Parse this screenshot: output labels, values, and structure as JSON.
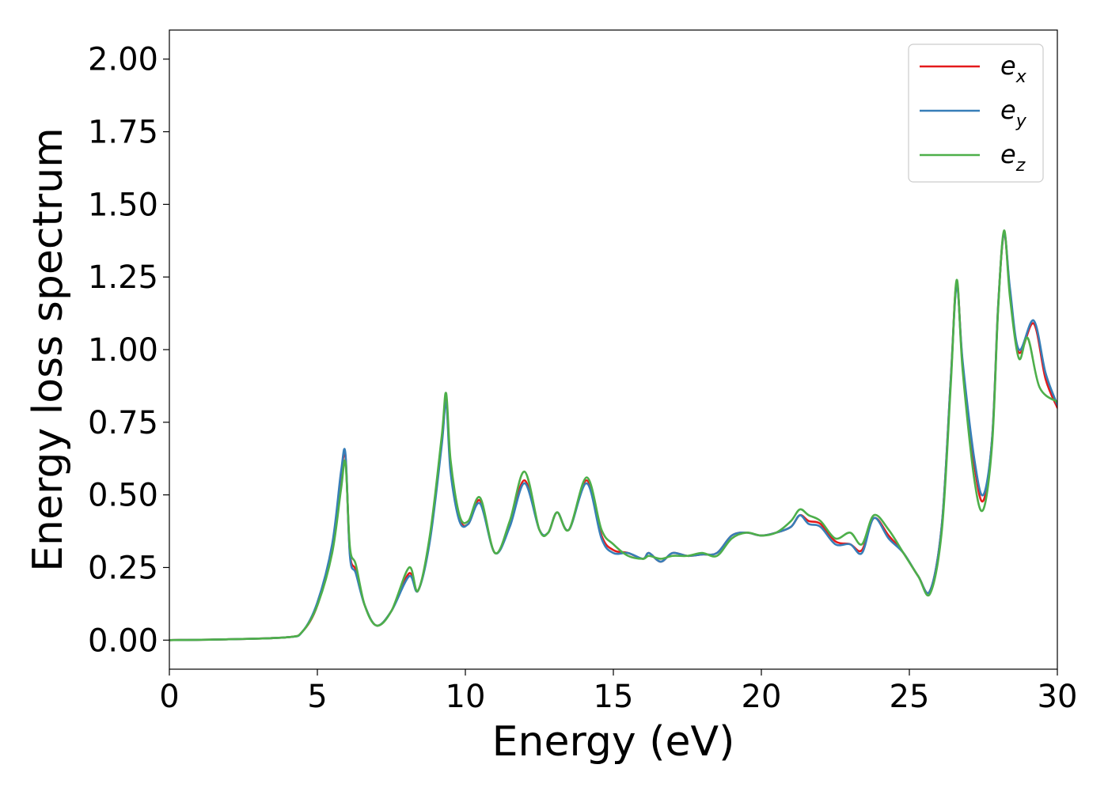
{
  "chart_data": {
    "type": "line",
    "xlabel": "Energy (eV)",
    "ylabel": "Energy loss spectrum",
    "xlim": [
      0,
      30
    ],
    "ylim": [
      -0.1,
      2.1
    ],
    "xticks": [
      0,
      5,
      10,
      15,
      20,
      25,
      30
    ],
    "xtick_labels": [
      "0",
      "5",
      "10",
      "15",
      "20",
      "25",
      "30"
    ],
    "yticks": [
      0,
      0.25,
      0.5,
      0.75,
      1.0,
      1.25,
      1.5,
      1.75,
      2.0
    ],
    "ytick_labels": [
      "0.00",
      "0.25",
      "0.50",
      "0.75",
      "1.00",
      "1.25",
      "1.50",
      "1.75",
      "2.00"
    ],
    "grid": false,
    "legend_position": "top-right",
    "series": [
      {
        "name": "e_x",
        "legend_base": "e",
        "legend_sub": "x",
        "color": "#e41a1c",
        "x": [
          0,
          2,
          4,
          4.5,
          5,
          5.5,
          5.8,
          5.95,
          6.1,
          6.3,
          6.6,
          7.0,
          7.5,
          8.1,
          8.4,
          8.8,
          9.2,
          9.35,
          9.5,
          9.8,
          10.1,
          10.5,
          11.0,
          11.5,
          12.0,
          12.5,
          12.8,
          13.1,
          13.5,
          14.1,
          14.6,
          15.0,
          15.5,
          16.0,
          16.2,
          16.6,
          17.0,
          17.5,
          18.0,
          18.5,
          19.0,
          19.5,
          20.0,
          20.5,
          21.0,
          21.3,
          21.6,
          22.0,
          22.5,
          23.0,
          23.4,
          23.8,
          24.3,
          24.8,
          25.3,
          25.7,
          26.1,
          26.4,
          26.6,
          26.8,
          27.2,
          27.5,
          27.8,
          28.0,
          28.2,
          28.4,
          28.7,
          29.2,
          29.6,
          30.0
        ],
        "y": [
          0.0,
          0.003,
          0.01,
          0.03,
          0.12,
          0.32,
          0.57,
          0.63,
          0.3,
          0.24,
          0.12,
          0.05,
          0.1,
          0.23,
          0.17,
          0.35,
          0.68,
          0.83,
          0.6,
          0.42,
          0.4,
          0.48,
          0.3,
          0.4,
          0.55,
          0.38,
          0.37,
          0.44,
          0.38,
          0.55,
          0.36,
          0.31,
          0.3,
          0.28,
          0.3,
          0.27,
          0.3,
          0.29,
          0.295,
          0.3,
          0.36,
          0.37,
          0.36,
          0.37,
          0.39,
          0.43,
          0.41,
          0.4,
          0.34,
          0.33,
          0.31,
          0.42,
          0.36,
          0.3,
          0.22,
          0.17,
          0.4,
          0.9,
          1.23,
          0.95,
          0.6,
          0.48,
          0.7,
          1.15,
          1.4,
          1.2,
          0.99,
          1.09,
          0.9,
          0.8
        ]
      },
      {
        "name": "e_y",
        "legend_base": "e",
        "legend_sub": "y",
        "color": "#377eb8",
        "x": [
          0,
          2,
          4,
          4.5,
          5,
          5.5,
          5.8,
          5.95,
          6.1,
          6.3,
          6.6,
          7.0,
          7.5,
          8.1,
          8.4,
          8.8,
          9.2,
          9.35,
          9.5,
          9.8,
          10.1,
          10.5,
          11.0,
          11.5,
          12.0,
          12.5,
          12.8,
          13.1,
          13.5,
          14.1,
          14.6,
          15.0,
          15.5,
          16.0,
          16.2,
          16.6,
          17.0,
          17.5,
          18.0,
          18.5,
          19.0,
          19.5,
          20.0,
          20.5,
          21.0,
          21.3,
          21.6,
          22.0,
          22.5,
          23.0,
          23.4,
          23.8,
          24.3,
          24.8,
          25.3,
          25.7,
          26.1,
          26.4,
          26.6,
          26.8,
          27.2,
          27.5,
          27.8,
          28.0,
          28.2,
          28.4,
          28.7,
          29.2,
          29.6,
          30.0
        ],
        "y": [
          0.0,
          0.003,
          0.01,
          0.03,
          0.13,
          0.33,
          0.58,
          0.64,
          0.29,
          0.23,
          0.12,
          0.05,
          0.1,
          0.22,
          0.17,
          0.34,
          0.67,
          0.82,
          0.58,
          0.41,
          0.4,
          0.47,
          0.3,
          0.39,
          0.54,
          0.38,
          0.37,
          0.44,
          0.38,
          0.54,
          0.35,
          0.3,
          0.3,
          0.28,
          0.3,
          0.27,
          0.3,
          0.29,
          0.295,
          0.3,
          0.36,
          0.37,
          0.36,
          0.37,
          0.39,
          0.43,
          0.4,
          0.39,
          0.33,
          0.33,
          0.3,
          0.42,
          0.35,
          0.3,
          0.22,
          0.17,
          0.4,
          0.9,
          1.22,
          0.96,
          0.62,
          0.5,
          0.7,
          1.15,
          1.4,
          1.21,
          1.0,
          1.1,
          0.92,
          0.81
        ]
      },
      {
        "name": "e_z",
        "legend_base": "e",
        "legend_sub": "z",
        "color": "#4daf4a",
        "x": [
          0,
          2,
          4,
          4.5,
          5,
          5.5,
          5.8,
          5.95,
          6.1,
          6.3,
          6.6,
          7.0,
          7.5,
          8.1,
          8.4,
          8.8,
          9.2,
          9.35,
          9.5,
          9.8,
          10.1,
          10.5,
          11.0,
          11.5,
          12.0,
          12.5,
          12.8,
          13.1,
          13.5,
          14.1,
          14.6,
          15.0,
          15.5,
          16.0,
          16.2,
          16.6,
          17.0,
          17.5,
          18.0,
          18.5,
          19.0,
          19.5,
          20.0,
          20.5,
          21.0,
          21.3,
          21.6,
          22.0,
          22.5,
          23.0,
          23.4,
          23.8,
          24.3,
          24.8,
          25.3,
          25.7,
          26.1,
          26.4,
          26.6,
          26.8,
          27.2,
          27.5,
          27.8,
          28.0,
          28.2,
          28.4,
          28.7,
          29.0,
          29.4,
          30.0
        ],
        "y": [
          0.0,
          0.003,
          0.01,
          0.03,
          0.12,
          0.3,
          0.52,
          0.61,
          0.32,
          0.26,
          0.12,
          0.05,
          0.1,
          0.25,
          0.17,
          0.36,
          0.7,
          0.85,
          0.62,
          0.43,
          0.41,
          0.49,
          0.3,
          0.41,
          0.58,
          0.38,
          0.37,
          0.44,
          0.38,
          0.56,
          0.38,
          0.33,
          0.29,
          0.28,
          0.29,
          0.28,
          0.29,
          0.29,
          0.3,
          0.29,
          0.35,
          0.37,
          0.36,
          0.37,
          0.41,
          0.45,
          0.43,
          0.41,
          0.35,
          0.37,
          0.33,
          0.43,
          0.38,
          0.3,
          0.22,
          0.16,
          0.38,
          0.88,
          1.24,
          0.93,
          0.55,
          0.45,
          0.68,
          1.14,
          1.41,
          1.18,
          0.97,
          1.04,
          0.87,
          0.82
        ]
      }
    ]
  }
}
